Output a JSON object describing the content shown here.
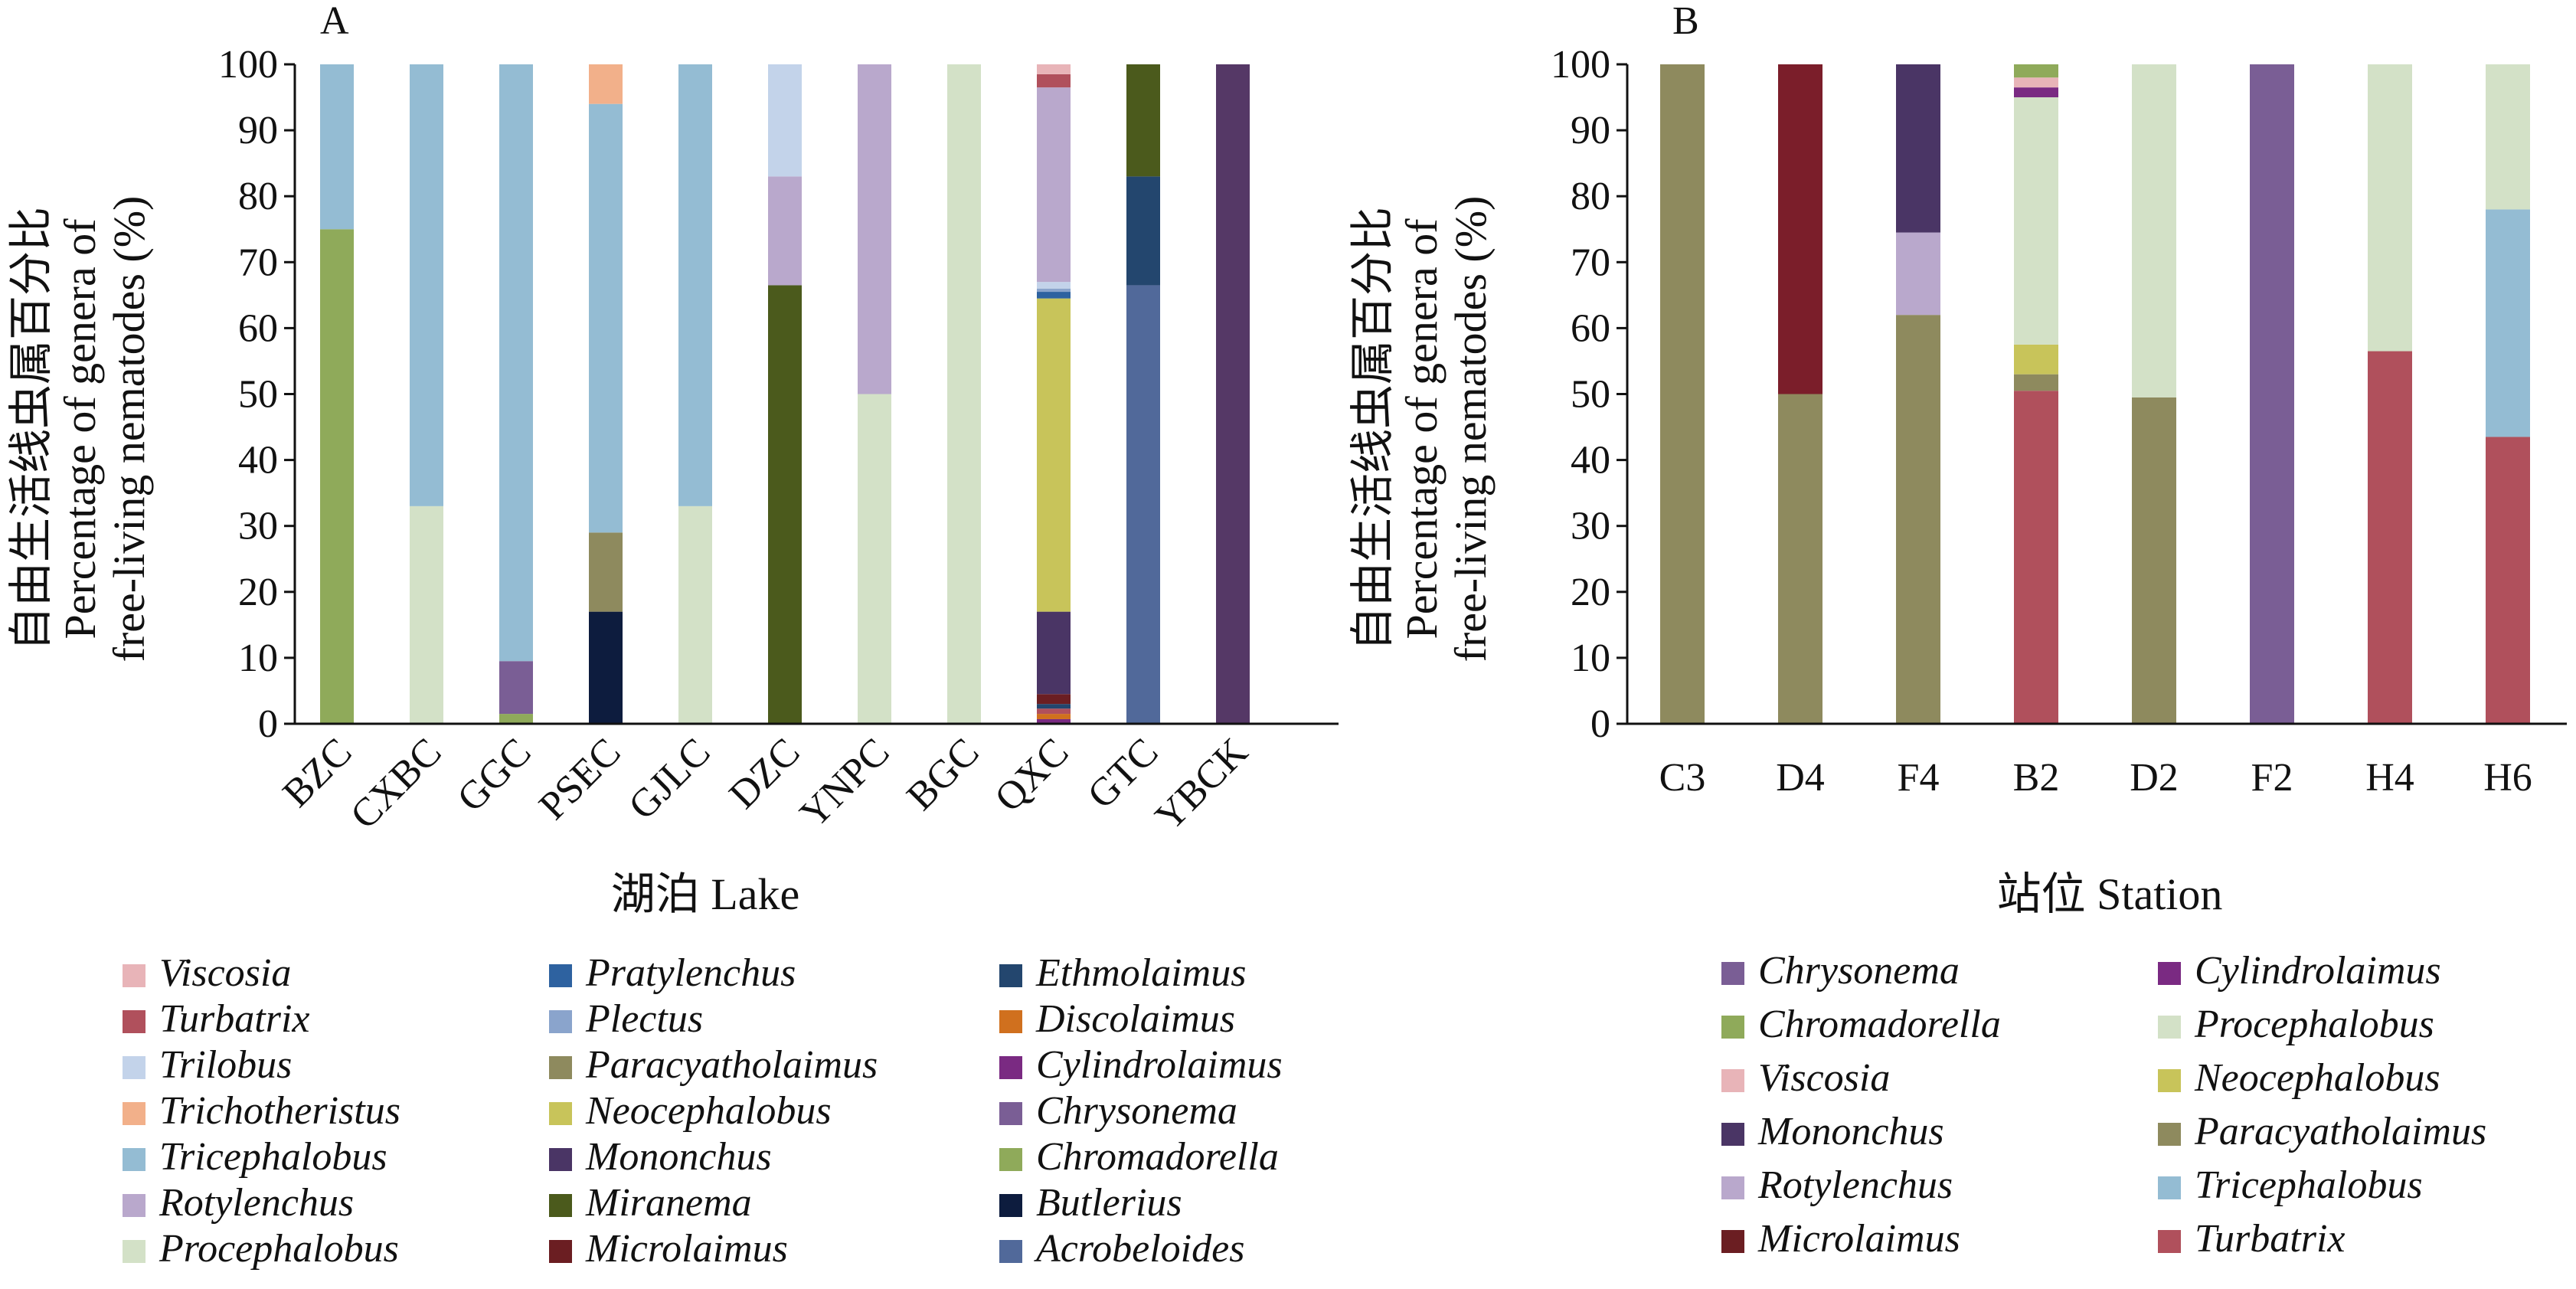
{
  "colors": {
    "Viscosia": "#e8b4b8",
    "Turbatrix": "#b0505c",
    "Trilobus": "#c3d3ea",
    "Trichotheristus": "#f2b08a",
    "Tricephalobus": "#94bcd3",
    "Rotylenchus": "#b9a8cc",
    "Procephalobus": "#d3e1c7",
    "Pratylenchus": "#2e62a0",
    "Plectus": "#8aa4cc",
    "Paracyatholaimus": "#8e8a5e",
    "Neocephalobus": "#c8c45a",
    "Mononchus": "#4a3565",
    "Miranema": "#4b5a1c",
    "Microlaimus": "#6b1e22",
    "Ethmolaimus": "#23466e",
    "Discolaimus": "#d0701e",
    "Cylindrolaimus": "#7a2a82",
    "Chrysonema": "#7a5e95",
    "Chromadorella": "#8faa5a",
    "Butlerius": "#0d1c3e",
    "Acrobeloides": "#51699a",
    "YBCK_color": "#553866",
    "D4_top": "#7b1e2a",
    "B2_Turbatrix": "#b0505c",
    "H4_Turbatrix": "#b0474f",
    "F2_Chrysonema": "#7a5e95"
  },
  "panel_a": {
    "label": "A",
    "xtitle": "湖泊 Lake",
    "ytitle_cn": "自由生活线虫属百分比",
    "ytitle_en1": "Percentage of genera of",
    "ytitle_en2": "free-living nematodes (%)",
    "ticks": [
      "0",
      "10",
      "20",
      "30",
      "40",
      "50",
      "60",
      "70",
      "80",
      "90",
      "100"
    ],
    "legend": [
      "Viscosia",
      "Turbatrix",
      "Trilobus",
      "Trichotheristus",
      "Tricephalobus",
      "Rotylenchus",
      "Procephalobus",
      "Pratylenchus",
      "Plectus",
      "Paracyatholaimus",
      "Neocephalobus",
      "Mononchus",
      "Miranema",
      "Microlaimus",
      "Ethmolaimus",
      "Discolaimus",
      "Cylindrolaimus",
      "Chrysonema",
      "Chromadorella",
      "Butlerius",
      "Acrobeloides"
    ]
  },
  "panel_b": {
    "label": "B",
    "xtitle": "站位 Station",
    "ytitle_cn": "自由生活线虫属百分比",
    "ytitle_en1": "Percentage of genera of",
    "ytitle_en2": "free-living nematodes (%)",
    "ticks": [
      "0",
      "10",
      "20",
      "30",
      "40",
      "50",
      "60",
      "70",
      "80",
      "90",
      "100"
    ],
    "legend": [
      "Chrysonema",
      "Chromadorella",
      "Viscosia",
      "Mononchus",
      "Rotylenchus",
      "Microlaimus",
      "Cylindrolaimus",
      "Procephalobus",
      "Neocephalobus",
      "Paracyatholaimus",
      "Tricephalobus",
      "Turbatrix"
    ]
  },
  "chart_data": [
    {
      "type": "bar",
      "stacked": true,
      "panel": "A",
      "xlabel": "湖泊 Lake",
      "ylabel": "自由生活线虫属百分比 Percentage of genera of free-living nematodes (%)",
      "ylim": [
        0,
        100
      ],
      "categories": [
        "BZC",
        "CXBC",
        "GGC",
        "PSEC",
        "GJLC",
        "DZC",
        "YNPC",
        "BGC",
        "QXC",
        "GTC",
        "YBCK"
      ],
      "bars": [
        {
          "category": "BZC",
          "segments": [
            {
              "genus": "Chromadorella",
              "value": 75
            },
            {
              "genus": "Tricephalobus",
              "value": 25
            }
          ]
        },
        {
          "category": "CXBC",
          "segments": [
            {
              "genus": "Procephalobus",
              "value": 33
            },
            {
              "genus": "Tricephalobus",
              "value": 67
            }
          ]
        },
        {
          "category": "GGC",
          "segments": [
            {
              "genus": "Chromadorella",
              "value": 1.5
            },
            {
              "genus": "Chrysonema",
              "value": 8
            },
            {
              "genus": "Tricephalobus",
              "value": 90.5
            }
          ]
        },
        {
          "category": "PSEC",
          "segments": [
            {
              "genus": "Butlerius",
              "value": 17
            },
            {
              "genus": "Paracyatholaimus",
              "value": 12
            },
            {
              "genus": "Tricephalobus",
              "value": 65
            },
            {
              "genus": "Trichotheristus",
              "value": 6
            }
          ]
        },
        {
          "category": "GJLC",
          "segments": [
            {
              "genus": "Procephalobus",
              "value": 33
            },
            {
              "genus": "Tricephalobus",
              "value": 67
            }
          ]
        },
        {
          "category": "DZC",
          "segments": [
            {
              "genus": "Miranema",
              "value": 66.5
            },
            {
              "genus": "Rotylenchus",
              "value": 16.5
            },
            {
              "genus": "Trilobus",
              "value": 17
            }
          ]
        },
        {
          "category": "YNPC",
          "segments": [
            {
              "genus": "Procephalobus",
              "value": 50
            },
            {
              "genus": "Rotylenchus",
              "value": 50
            }
          ]
        },
        {
          "category": "BGC",
          "segments": [
            {
              "genus": "Procephalobus",
              "value": 100
            }
          ]
        },
        {
          "category": "QXC",
          "segments": [
            {
              "genus": "Cylindrolaimus",
              "value": 0.7
            },
            {
              "genus": "Discolaimus",
              "value": 0.8
            },
            {
              "genus": "Turbatrix",
              "value": 0.8
            },
            {
              "genus": "Ethmolaimus",
              "value": 0.7
            },
            {
              "genus": "Microlaimus",
              "value": 1.5
            },
            {
              "genus": "Mononchus",
              "value": 12.5
            },
            {
              "genus": "Neocephalobus",
              "value": 47.5
            },
            {
              "genus": "Pratylenchus",
              "value": 1
            },
            {
              "genus": "Plectus",
              "value": 0.5
            },
            {
              "genus": "Trilobus",
              "value": 1
            },
            {
              "genus": "Rotylenchus",
              "value": 29.5
            },
            {
              "genus": "Turbatrix",
              "value": 2
            },
            {
              "genus": "Viscosia",
              "value": 1.5
            }
          ]
        },
        {
          "category": "GTC",
          "segments": [
            {
              "genus": "Acrobeloides",
              "value": 66.5
            },
            {
              "genus": "Ethmolaimus",
              "value": 16.5
            },
            {
              "genus": "Miranema",
              "value": 17
            }
          ]
        },
        {
          "category": "YBCK",
          "segments": [
            {
              "genus": "Mononchus",
              "value": 100
            }
          ]
        }
      ]
    },
    {
      "type": "bar",
      "stacked": true,
      "panel": "B",
      "xlabel": "站位 Station",
      "ylabel": "自由生活线虫属百分比 Percentage of genera of free-living nematodes (%)",
      "ylim": [
        0,
        100
      ],
      "categories": [
        "C3",
        "D4",
        "F4",
        "B2",
        "D2",
        "F2",
        "H4",
        "H6"
      ],
      "bars": [
        {
          "category": "C3",
          "segments": [
            {
              "genus": "Paracyatholaimus",
              "value": 100
            }
          ]
        },
        {
          "category": "D4",
          "segments": [
            {
              "genus": "Paracyatholaimus",
              "value": 50
            },
            {
              "genus": "Microlaimus",
              "value": 50
            }
          ]
        },
        {
          "category": "F4",
          "segments": [
            {
              "genus": "Paracyatholaimus",
              "value": 62
            },
            {
              "genus": "Rotylenchus",
              "value": 12.5
            },
            {
              "genus": "Mononchus",
              "value": 25.5
            }
          ]
        },
        {
          "category": "B2",
          "segments": [
            {
              "genus": "Turbatrix",
              "value": 50.5
            },
            {
              "genus": "Paracyatholaimus",
              "value": 2.5
            },
            {
              "genus": "Neocephalobus",
              "value": 4.5
            },
            {
              "genus": "Procephalobus",
              "value": 37.5
            },
            {
              "genus": "Cylindrolaimus",
              "value": 1.5
            },
            {
              "genus": "Viscosia",
              "value": 1.5
            },
            {
              "genus": "Chromadorella",
              "value": 2
            }
          ]
        },
        {
          "category": "D2",
          "segments": [
            {
              "genus": "Paracyatholaimus",
              "value": 49.5
            },
            {
              "genus": "Procephalobus",
              "value": 50.5
            }
          ]
        },
        {
          "category": "F2",
          "segments": [
            {
              "genus": "Chrysonema",
              "value": 100
            }
          ]
        },
        {
          "category": "H4",
          "segments": [
            {
              "genus": "Turbatrix",
              "value": 56.5
            },
            {
              "genus": "Procephalobus",
              "value": 43.5
            }
          ]
        },
        {
          "category": "H6",
          "segments": [
            {
              "genus": "Turbatrix",
              "value": 43.5
            },
            {
              "genus": "Tricephalobus",
              "value": 34.5
            },
            {
              "genus": "Procephalobus",
              "value": 22
            }
          ]
        }
      ]
    }
  ]
}
